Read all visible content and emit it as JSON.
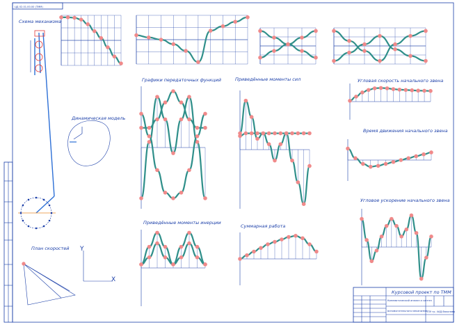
{
  "sheet": {
    "corner_label": "ЦД 02.01.00.00 (ТММ)",
    "title_block_title": "Курсовой проект по ТММ",
    "title_block_sub1": "Кинематический анализ и синтез",
    "title_block_sub2": "вспомогательного механизма",
    "title_block_org": "ТПУ гр. 4АД-бакалавр"
  },
  "sections": {
    "mechanism": "Схема механизма",
    "dynamic_model": "Динамическая модель",
    "velocity_plan": "План скоростей",
    "transfer_functions": "Графики передаточных функций",
    "reduced_forces": "Приведённые моменты сил",
    "reduced_inertia": "Приведённые моменты инерции",
    "total_work": "Суммарная работа",
    "link_speed": "Угловая скорость начального звена",
    "link_time": "Время движения начального звена",
    "link_accel": "Угловое ускорение начального звена"
  },
  "velocity_plan_axes": {
    "y": "Y",
    "x": "X"
  },
  "chart_data": [
    {
      "type": "line",
      "id": "top1",
      "series": [
        {
          "values": [
            1,
            1,
            0.98,
            0.9,
            0.7,
            0.4,
            0.1,
            -0.3,
            -0.7,
            -1.0
          ]
        }
      ]
    },
    {
      "type": "line",
      "id": "top2",
      "series": [
        {
          "values": [
            0.2,
            0.1,
            0,
            -0.2,
            -0.5,
            -1.0,
            0.4,
            0.6,
            0.8,
            1.0
          ]
        }
      ]
    },
    {
      "type": "line",
      "id": "top3",
      "series": [
        {
          "values": [
            0.9,
            0.5,
            0.1,
            -0.3,
            -0.7
          ]
        },
        {
          "values": [
            -0.7,
            -0.3,
            0.1,
            0.5,
            0.9
          ]
        }
      ]
    },
    {
      "type": "line",
      "id": "top4",
      "series": [
        {
          "values": [
            0.9,
            0.3,
            -0.3,
            -0.9,
            0.1,
            0.6,
            0.9
          ]
        },
        {
          "values": [
            -0.9,
            -0.4,
            0.1,
            0.6,
            -0.2,
            -0.6,
            -0.9
          ]
        }
      ]
    },
    {
      "type": "line",
      "id": "transfer",
      "series": [
        {
          "values": [
            -0.9,
            0.1,
            0.9,
            0.5,
            -0.1,
            0.5,
            0.9,
            0.1,
            -0.9
          ]
        },
        {
          "values": [
            0.35,
            0.35,
            0.5,
            0.8,
            1.0,
            0.8,
            0.5,
            0.35,
            0.35
          ]
        },
        {
          "values": [
            0.6,
            0.2,
            -0.4,
            -0.8,
            -0.9,
            -0.8,
            -0.4,
            0.2,
            0.6
          ]
        }
      ]
    },
    {
      "type": "line",
      "id": "forces",
      "series": [
        {
          "values": [
            0.3,
            0.9,
            0.6,
            0.2,
            0.3,
            0.1,
            -0.2,
            0.1,
            0.3,
            -0.2,
            -0.6,
            -1.0,
            -0.3
          ]
        },
        {
          "values": [
            0.25,
            0.3,
            0.3,
            0.3,
            0.3,
            0.3,
            0.3,
            0.3,
            0.3,
            0.3,
            0.3,
            0.3,
            0.3
          ]
        }
      ]
    },
    {
      "type": "line",
      "id": "speed",
      "series": [
        {
          "values": [
            0.05,
            0.3,
            0.55,
            0.7,
            0.8,
            0.82,
            0.8,
            0.75,
            0.72,
            0.7,
            0.68,
            0.66,
            0.65,
            0.64
          ]
        }
      ]
    },
    {
      "type": "line",
      "id": "time",
      "series": [
        {
          "values": [
            0.6,
            0.1,
            -0.2,
            -0.35,
            -0.3,
            -0.2,
            -0.1,
            0,
            0.1,
            0.2,
            0.3,
            0.4
          ]
        }
      ]
    },
    {
      "type": "line",
      "id": "inertia",
      "series": [
        {
          "values": [
            0.1,
            0.6,
            1.0,
            0.6,
            0.1,
            0.6,
            1.0,
            0.6,
            0.1
          ]
        },
        {
          "values": [
            0.1,
            0.3,
            0.7,
            0.3,
            0.1,
            0.3,
            0.7,
            0.3,
            0.1
          ]
        }
      ]
    },
    {
      "type": "line",
      "id": "work",
      "series": [
        {
          "values": [
            0.0,
            0.15,
            0.3,
            0.45,
            0.6,
            0.7,
            0.8,
            0.9,
            0.95,
            0.85,
            0.6,
            0.3
          ]
        }
      ]
    },
    {
      "type": "line",
      "id": "accel",
      "series": [
        {
          "values": [
            0.8,
            0.2,
            -0.4,
            -0.1,
            0.3,
            0.6,
            0.8,
            0.6,
            0.3,
            0.5,
            0.9,
            0.4,
            -0.9,
            -0.3,
            0.3
          ]
        }
      ]
    }
  ]
}
